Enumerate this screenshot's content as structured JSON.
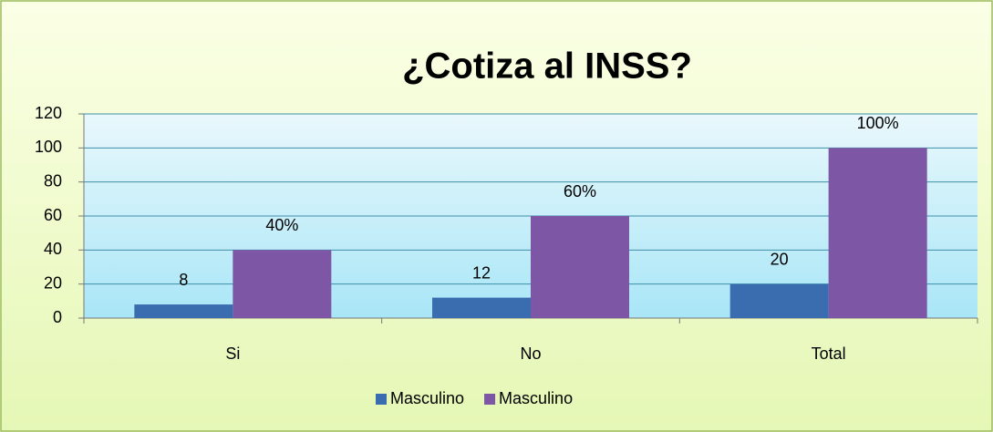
{
  "chart_data": {
    "type": "bar",
    "title": "¿Cotiza al INSS?",
    "categories": [
      "Si",
      "No",
      "Total"
    ],
    "series": [
      {
        "name": "Masculino",
        "color": "#3a6db0",
        "values": [
          8,
          12,
          20
        ]
      },
      {
        "name": "Masculino",
        "color": "#7e56a6",
        "values": [
          40,
          60,
          100
        ],
        "value_labels": [
          "40%",
          "60%",
          "100%"
        ]
      }
    ],
    "ylim": [
      0,
      120
    ],
    "yticks": [
      0,
      20,
      40,
      60,
      80,
      100,
      120
    ],
    "grid": true,
    "legend": "bottom"
  }
}
